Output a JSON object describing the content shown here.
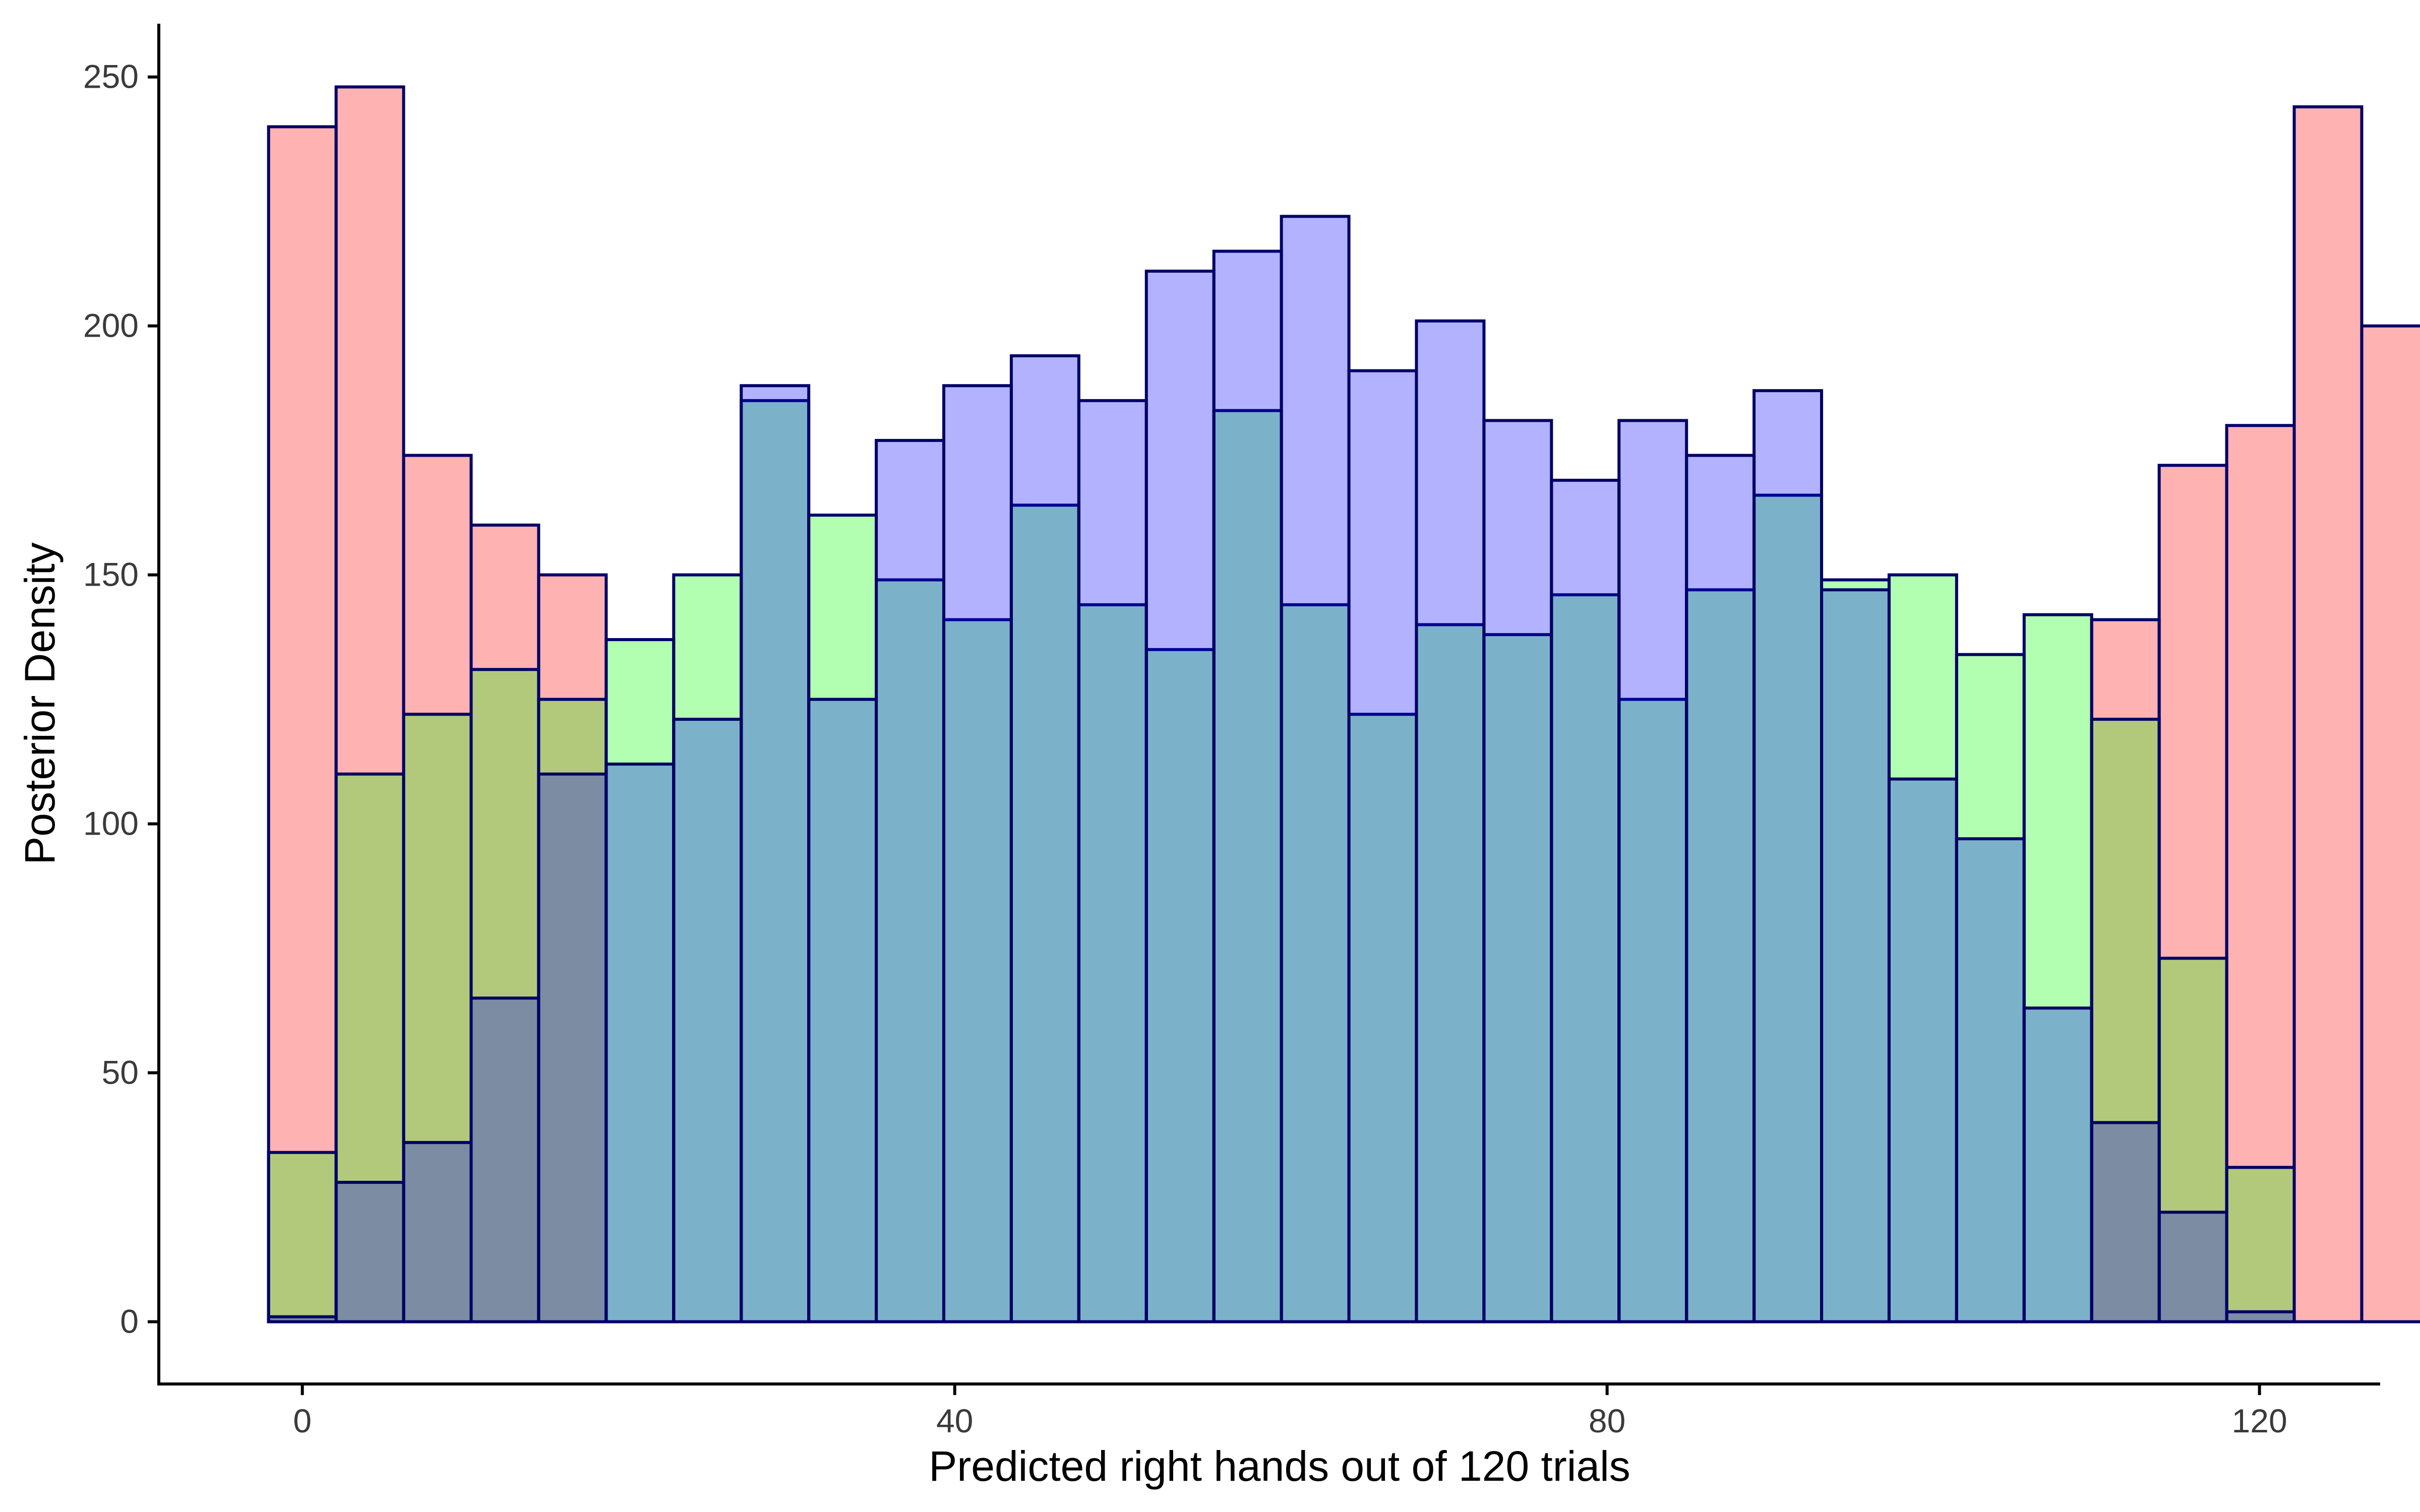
{
  "chart_data": {
    "type": "bar",
    "xlabel": "Predicted right hands out of 120 trials",
    "ylabel": "Posterior Density",
    "xlim": [
      -8.8,
      127.4
    ],
    "ylim": [
      -12.5,
      260.7
    ],
    "x_ticks": [
      0,
      40,
      80,
      120
    ],
    "y_ticks": [
      0,
      50,
      100,
      150,
      200,
      250
    ],
    "grid": false,
    "legend": "none",
    "bin_width": 4.14,
    "bin_start": -2.07,
    "series": [
      {
        "color": "#ff0000",
        "values": [
          240,
          248,
          174,
          160,
          150,
          0,
          0,
          0,
          0,
          0,
          0,
          0,
          0,
          0,
          0,
          0,
          0,
          0,
          0,
          0,
          0,
          0,
          0,
          0,
          0,
          0,
          0,
          141,
          172,
          180,
          244,
          200
        ]
      },
      {
        "color": "#00ff00",
        "values": [
          34,
          110,
          122,
          131,
          125,
          137,
          150,
          185,
          162,
          149,
          141,
          164,
          144,
          135,
          183,
          144,
          122,
          140,
          138,
          146,
          125,
          147,
          166,
          149,
          150,
          134,
          142,
          121,
          73,
          31,
          0,
          0
        ]
      },
      {
        "color": "#0000ff",
        "values": [
          1,
          28,
          36,
          65,
          110,
          112,
          121,
          188,
          125,
          177,
          188,
          194,
          185,
          211,
          215,
          222,
          191,
          201,
          181,
          169,
          181,
          174,
          187,
          147,
          109,
          97,
          63,
          40,
          22,
          2,
          0,
          0
        ]
      }
    ]
  }
}
